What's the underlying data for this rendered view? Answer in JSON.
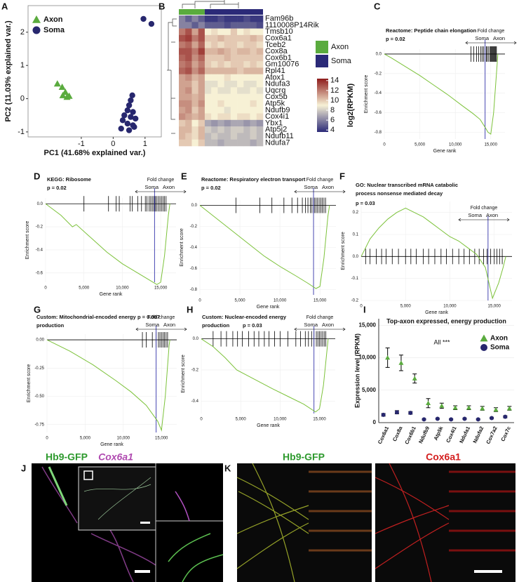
{
  "chart_data": [
    {
      "panel": "A",
      "type": "scatter",
      "xlabel": "PC1 (41.68% explained var.)",
      "ylabel": "PC2 (11.03% explained var.)",
      "xlim": [
        -2.67,
        1.51
      ],
      "ylim": [
        -1.15,
        2.8
      ],
      "xticks": [
        -1,
        0,
        1
      ],
      "yticks": [
        -1,
        0,
        1,
        2
      ],
      "legend": "upper left",
      "series": [
        {
          "name": "Axon",
          "color": "#5aab3e",
          "marker": "triangle",
          "x": [
            -1.75,
            -1.6,
            -1.5,
            -1.45,
            -1.58,
            -1.38
          ],
          "values": [
            0.45,
            0.35,
            0.2,
            0.05,
            0.1,
            0.08
          ]
        },
        {
          "name": "Soma",
          "color": "#27276e",
          "marker": "circle",
          "x": [
            0.95,
            1.2,
            0.6,
            0.55,
            0.5,
            0.45,
            0.62,
            0.35,
            0.55,
            0.3,
            0.45,
            0.62,
            0.25,
            0.5,
            0.7,
            0.66
          ],
          "values": [
            2.4,
            2.25,
            0.1,
            -0.05,
            -0.2,
            -0.35,
            -0.4,
            -0.5,
            -0.55,
            -0.65,
            -0.75,
            -0.8,
            -0.9,
            -0.95,
            -0.6,
            -0.85
          ]
        }
      ]
    },
    {
      "panel": "B",
      "type": "heatmap",
      "rows": [
        "Fam96b",
        "1110008P14Rik",
        "Tmsb10",
        "Cox6a1",
        "Tceb2",
        "Cox8a",
        "Cox6b1",
        "Gm10076",
        "Rpl41",
        "Atox1",
        "Ndufa3",
        "Uqcrq",
        "Cox5b",
        "Atp5k",
        "Ndufb9",
        "Cox4i1",
        "Ybx1",
        "Atp5j2",
        "Ndufb11",
        "Ndufa7"
      ],
      "groups": [
        {
          "name": "Axon",
          "color": "#5aab3e",
          "columns": 4
        },
        {
          "name": "Soma",
          "color": "#2b2a78",
          "columns": 9
        }
      ],
      "values": [
        [
          6,
          5,
          6,
          5,
          4,
          4,
          4.5,
          4,
          4,
          4,
          4.5,
          4,
          4
        ],
        [
          6,
          6,
          5,
          6,
          5,
          5,
          5,
          4.5,
          5,
          5,
          5,
          5,
          4.5
        ],
        [
          12,
          13,
          11,
          13,
          9,
          9.5,
          9,
          9,
          10,
          9,
          9.5,
          9,
          9
        ],
        [
          13,
          13.5,
          12,
          13,
          10,
          10,
          10.5,
          10,
          10,
          10,
          10,
          10.5,
          10
        ],
        [
          12,
          12.5,
          11,
          12.5,
          9.5,
          10,
          9.5,
          10,
          10,
          9.5,
          10,
          10,
          9.5
        ],
        [
          13,
          13,
          12,
          13.5,
          10.5,
          10.5,
          11,
          10.5,
          10,
          10.5,
          10.5,
          10,
          10.5
        ],
        [
          12.5,
          13,
          11.5,
          12.5,
          10,
          10,
          10,
          10.5,
          10,
          10,
          10,
          10,
          10
        ],
        [
          12,
          12.5,
          11,
          12,
          10,
          9.5,
          10,
          9.5,
          10,
          10,
          9.5,
          10,
          9.5
        ],
        [
          12.5,
          13,
          11.5,
          12.5,
          10.5,
          10.5,
          10.5,
          10.5,
          10.5,
          10,
          10.5,
          10.5,
          10.5
        ],
        [
          11,
          11.5,
          10.5,
          11,
          9,
          9,
          9,
          9.5,
          9,
          9,
          9,
          9,
          9
        ],
        [
          11,
          11,
          10,
          11,
          8.5,
          8.5,
          9,
          8.5,
          8.5,
          9,
          8.5,
          8.5,
          9
        ],
        [
          11,
          11.5,
          10,
          11,
          8.5,
          9,
          8.5,
          8.5,
          9,
          8.5,
          8.5,
          9,
          8.5
        ],
        [
          11,
          11,
          10.5,
          11,
          9,
          9,
          9,
          9,
          9,
          9,
          9,
          9,
          9
        ],
        [
          11.5,
          11.5,
          10.5,
          11.5,
          9,
          9,
          9.5,
          9,
          9,
          9,
          9,
          9.5,
          9
        ],
        [
          11,
          11.5,
          10,
          11,
          9,
          9,
          9,
          8.5,
          9,
          9,
          9,
          9,
          9
        ],
        [
          11.5,
          11,
          10.5,
          11,
          9.5,
          9,
          9.5,
          9.5,
          9,
          9.5,
          9.5,
          9,
          9.5
        ],
        [
          10,
          10.5,
          9,
          10,
          7,
          6.5,
          7,
          6.5,
          7,
          7,
          6.5,
          7,
          6.5
        ],
        [
          10.5,
          10.5,
          9.5,
          10.5,
          8,
          7.5,
          8,
          7.5,
          8,
          8,
          7.5,
          8,
          7.5
        ],
        [
          10.5,
          10,
          9.5,
          10.5,
          7.5,
          8,
          7.5,
          7.5,
          8,
          7.5,
          7.5,
          8,
          7.5
        ],
        [
          10,
          10,
          9,
          10,
          7.5,
          7.5,
          7,
          7.5,
          7.5,
          7.5,
          7.5,
          7,
          7.5
        ]
      ],
      "colorbar": {
        "label": "log2(RPKM)",
        "lim": [
          3.6,
          14.4
        ],
        "ticks": [
          14,
          12,
          10,
          8,
          6,
          4
        ],
        "colors": [
          "#2b2a78",
          "#f7f1d5",
          "#8e1b1b"
        ]
      }
    },
    {
      "panel": "C",
      "type": "line",
      "title": [
        "Reactome: Peptide chain elongation"
      ],
      "p": "p = 0.02",
      "fold_change": {
        "label": "Fold change",
        "left": "Soma",
        "right": "Axon"
      },
      "xlabel": "Gene rank",
      "ylabel": "Enrichment score",
      "color": "#7cc23a",
      "split": 14200,
      "xlim": [
        0,
        17000
      ],
      "ylim": [
        -0.87,
        0.05
      ],
      "xticks": [
        0,
        {
          "value": 5000,
          "label": "5,000"
        },
        {
          "value": 10000,
          "label": "10,000"
        },
        {
          "value": 15000,
          "label": "15,000"
        }
      ],
      "yticks": [
        {
          "value": 0,
          "label": "0.0"
        },
        -0.2,
        -0.4,
        -0.6,
        -0.8
      ],
      "x": [
        0,
        1000,
        3000,
        5000,
        7000,
        9000,
        11000,
        12500,
        13500,
        14200,
        14600,
        15000,
        15400,
        15800,
        16000
      ],
      "values": [
        0,
        -0.04,
        -0.13,
        -0.22,
        -0.32,
        -0.42,
        -0.53,
        -0.61,
        -0.67,
        -0.75,
        -0.8,
        -0.82,
        -0.6,
        -0.2,
        0
      ],
      "hits": [
        12200,
        12600,
        13000,
        13300,
        13600,
        13800,
        14000,
        14200,
        14400,
        14500,
        14700,
        14900,
        15000,
        15100,
        15200,
        15300,
        15400,
        15500,
        15600,
        15700,
        15800
      ]
    },
    {
      "panel": "D",
      "type": "line",
      "title": [
        "KEGG: Ribosome"
      ],
      "p": "p = 0.02",
      "fold_change": {
        "label": "Fold change",
        "left": "Soma",
        "right": "Axon"
      },
      "xlabel": "Gene rank",
      "ylabel": "Enrichment score",
      "color": "#7cc23a",
      "split": 14200,
      "xlim": [
        0,
        17000
      ],
      "ylim": [
        -0.68,
        0.05
      ],
      "xticks": [
        0,
        {
          "value": 5000,
          "label": "5,000"
        },
        {
          "value": 10000,
          "label": "10,000"
        },
        {
          "value": 15000,
          "label": "15,000"
        }
      ],
      "yticks": [
        {
          "value": 0,
          "label": "0.0"
        },
        -0.2,
        -0.4,
        -0.6
      ],
      "x": [
        0,
        2000,
        3500,
        4000,
        6000,
        8000,
        10000,
        12000,
        13500,
        14500,
        15000,
        15500,
        16000,
        16200
      ],
      "values": [
        0,
        -0.1,
        -0.2,
        -0.18,
        -0.3,
        -0.42,
        -0.52,
        -0.6,
        -0.66,
        -0.7,
        -0.68,
        -0.45,
        -0.1,
        0
      ],
      "hits": [
        5000,
        8200,
        9200,
        9600,
        11000,
        11300,
        12000,
        12500,
        13000,
        13200,
        13500,
        13700,
        13900,
        14100,
        14300,
        14500,
        14700,
        14900,
        15100,
        15300,
        15500,
        15700
      ]
    },
    {
      "panel": "E",
      "type": "line",
      "title": [
        "Reactome: Respiratory electron transport"
      ],
      "p": "p = 0.02",
      "fold_change": {
        "label": "Fold change",
        "left": "Soma",
        "right": "Axon"
      },
      "xlabel": "Gene rank",
      "ylabel": "Enrichment score",
      "color": "#7cc23a",
      "split": 14200,
      "xlim": [
        0,
        17000
      ],
      "ylim": [
        -0.85,
        0.05
      ],
      "xticks": [
        0,
        {
          "value": 5000,
          "label": "5,000"
        },
        {
          "value": 10000,
          "label": "10,000"
        },
        {
          "value": 15000,
          "label": "15,000"
        }
      ],
      "yticks": [
        {
          "value": 0,
          "label": "0.0"
        },
        -0.2,
        -0.4,
        -0.6,
        -0.8
      ],
      "x": [
        0,
        2000,
        4000,
        6000,
        8000,
        10000,
        12000,
        13500,
        14500,
        15000,
        15500,
        16000,
        16200
      ],
      "values": [
        0,
        -0.12,
        -0.24,
        -0.36,
        -0.48,
        -0.58,
        -0.67,
        -0.74,
        -0.79,
        -0.77,
        -0.5,
        -0.1,
        0
      ],
      "hits": [
        4500,
        7500,
        9000,
        10500,
        11500,
        12200,
        12800,
        13200,
        13500,
        13800,
        14000,
        14300,
        14500,
        14700,
        14900,
        15100,
        15300,
        15500,
        15700
      ]
    },
    {
      "panel": "F",
      "type": "line",
      "title": [
        "GO: Nuclear transcribed mRNA catabolic",
        "process nonsense mediated decay"
      ],
      "p": "p = 0.03",
      "fold_change": {
        "label": "Fold change",
        "left": "Soma",
        "right": "Axon"
      },
      "xlabel": "Gene rank",
      "ylabel": "Enrichment score",
      "color": "#7cc23a",
      "split": 14300,
      "xlim": [
        0,
        17000
      ],
      "ylim": [
        -0.2,
        0.25
      ],
      "xticks": [
        0,
        {
          "value": 5000,
          "label": "5,000"
        },
        {
          "value": 10000,
          "label": "10,000"
        },
        {
          "value": 15000,
          "label": "15,000"
        }
      ],
      "yticks": [
        0.2,
        0.1,
        {
          "value": 0,
          "label": "0.0"
        },
        -0.1,
        -0.2
      ],
      "x": [
        0,
        1000,
        2000,
        3000,
        4000,
        5000,
        6000,
        7000,
        8000,
        9000,
        10000,
        11000,
        12000,
        13000,
        14000,
        14800,
        15500,
        16000,
        16300
      ],
      "values": [
        0,
        0.08,
        0.13,
        0.17,
        0.2,
        0.22,
        0.2,
        0.18,
        0.15,
        0.12,
        0.09,
        0.07,
        0.04,
        0.01,
        -0.05,
        -0.19,
        -0.12,
        -0.05,
        0
      ],
      "hits": [
        500,
        1000,
        1700,
        2300,
        2800,
        3500,
        4200,
        5000,
        5600,
        6200,
        7000,
        7600,
        8300,
        9000,
        9600,
        10300,
        11000,
        11600,
        12200,
        12800,
        13300,
        13800,
        14200,
        14600,
        15000,
        15300,
        15600,
        15900
      ]
    },
    {
      "panel": "G",
      "type": "line",
      "title": [
        "Custom: Mitochondrial-encoded energy",
        "production"
      ],
      "p": "p = 0.007",
      "fold_change": {
        "label": "Fold change",
        "left": "Soma",
        "right": "Axon"
      },
      "xlabel": "Gene rank",
      "ylabel": "Enrichment score",
      "color": "#7cc23a",
      "split": 14300,
      "xlim": [
        0,
        17000
      ],
      "ylim": [
        -0.82,
        0.05
      ],
      "xticks": [
        0,
        {
          "value": 5000,
          "label": "5,000"
        },
        {
          "value": 10000,
          "label": "10,000"
        },
        {
          "value": 15000,
          "label": "15,000"
        }
      ],
      "yticks": [
        {
          "value": 0,
          "label": "0.00"
        },
        -0.25,
        {
          "value": -0.5,
          "label": "-0.50"
        },
        -0.75
      ],
      "x": [
        0,
        3000,
        6000,
        9000,
        11000,
        13000,
        14500,
        15000,
        15500,
        16000,
        16100
      ],
      "values": [
        0,
        -0.1,
        -0.22,
        -0.36,
        -0.46,
        -0.58,
        -0.72,
        -0.8,
        -0.5,
        -0.05,
        0
      ],
      "hits": [
        12500,
        13000,
        13800,
        14300,
        14600,
        14800,
        15000,
        15200,
        15400,
        15600,
        15800
      ]
    },
    {
      "panel": "H",
      "type": "line",
      "title": [
        "Custom: Nuclear-encoded energy",
        "production"
      ],
      "p": "p = 0.03",
      "fold_change": {
        "label": "Fold change",
        "left": "Soma",
        "right": "Axon"
      },
      "xlabel": "Gene rank",
      "ylabel": "Enrichment score",
      "color": "#7cc23a",
      "split": 14300,
      "xlim": [
        0,
        17000
      ],
      "ylim": [
        -0.48,
        0.03
      ],
      "xticks": [
        0,
        {
          "value": 5000,
          "label": "5,000"
        },
        {
          "value": 10000,
          "label": "10,000"
        },
        {
          "value": 15000,
          "label": "15,000"
        }
      ],
      "yticks": [
        {
          "value": 0,
          "label": "0.0"
        },
        -0.2,
        -0.4
      ],
      "x": [
        0,
        1500,
        3000,
        4500,
        6000,
        7500,
        9000,
        11000,
        13000,
        14500,
        15000,
        15500,
        16000,
        16100
      ],
      "values": [
        0,
        -0.05,
        -0.12,
        -0.2,
        -0.24,
        -0.28,
        -0.32,
        -0.37,
        -0.42,
        -0.47,
        -0.45,
        -0.3,
        -0.05,
        0
      ],
      "hits": [
        1500,
        2500,
        3200,
        4000,
        4600,
        5200,
        6000,
        6700,
        7300,
        8000,
        8600,
        9300,
        10000,
        11000,
        12000,
        12600,
        13200,
        13600,
        14000,
        14300,
        14600,
        14800,
        15000,
        15200,
        15400,
        15600,
        15800
      ]
    },
    {
      "panel": "I",
      "type": "dot",
      "title": "Top-axon expressed, energy production",
      "annotation": "All ***",
      "ylabel": "Expression level (RPKM)",
      "legend": "upper right",
      "categories": [
        "Cox6a1",
        "Cox8a",
        "Cox6b1",
        "Ndufb9",
        "Atp5k",
        "Cox4i1",
        "Ndufa1",
        "Ndufa2",
        "Cox7a2",
        "Cox7c"
      ],
      "ylim": [
        0,
        16000
      ],
      "yticks": [
        0,
        {
          "value": 5000,
          "label": "5,000"
        },
        {
          "value": 10000,
          "label": "10,000"
        },
        {
          "value": 15000,
          "label": "15,000"
        }
      ],
      "series": [
        {
          "name": "Axon",
          "color": "#5aab3e",
          "marker": "triangle",
          "values": [
            10000,
            9200,
            6800,
            3000,
            2600,
            2300,
            2300,
            2200,
            2000,
            2200
          ],
          "errors": [
            1500,
            1200,
            700,
            700,
            400,
            300,
            300,
            300,
            300,
            300
          ]
        },
        {
          "name": "Soma",
          "color": "#27276e",
          "marker": "circle",
          "values": [
            1200,
            1600,
            1500,
            500,
            600,
            500,
            600,
            500,
            700,
            900
          ],
          "errors": [
            200,
            250,
            200,
            100,
            100,
            100,
            100,
            100,
            120,
            150
          ]
        }
      ]
    }
  ],
  "micrographs": [
    {
      "panel": "J",
      "channels": [
        "Hb9-GFP",
        "Cox6a1"
      ]
    },
    {
      "panel": "K",
      "channels": [
        "Hb9-GFP",
        "Cox6a1"
      ]
    }
  ]
}
